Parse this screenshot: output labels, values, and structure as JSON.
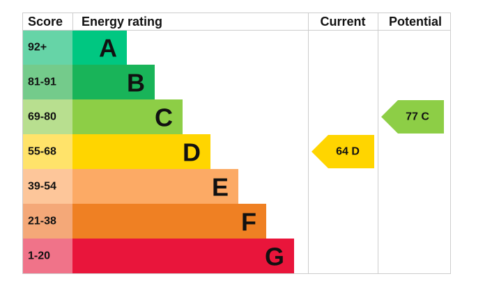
{
  "header": {
    "score": "Score",
    "rating": "Energy rating",
    "current": "Current",
    "potential": "Potential"
  },
  "bands": [
    {
      "score": "92+",
      "letter": "A",
      "color": "#00c781",
      "score_color": "#66d4a7"
    },
    {
      "score": "81-91",
      "letter": "B",
      "color": "#19b459",
      "score_color": "#74cb8b"
    },
    {
      "score": "69-80",
      "letter": "C",
      "color": "#8dce46",
      "score_color": "#b8df8f"
    },
    {
      "score": "55-68",
      "letter": "D",
      "color": "#ffd500",
      "score_color": "#ffe36a"
    },
    {
      "score": "39-54",
      "letter": "E",
      "color": "#fcaa65",
      "score_color": "#fdc69a"
    },
    {
      "score": "21-38",
      "letter": "F",
      "color": "#ef8023",
      "score_color": "#f4a878"
    },
    {
      "score": "1-20",
      "letter": "G",
      "color": "#e9153b",
      "score_color": "#f07389"
    }
  ],
  "current": {
    "label": "64 D"
  },
  "potential": {
    "label": "77 C"
  }
}
